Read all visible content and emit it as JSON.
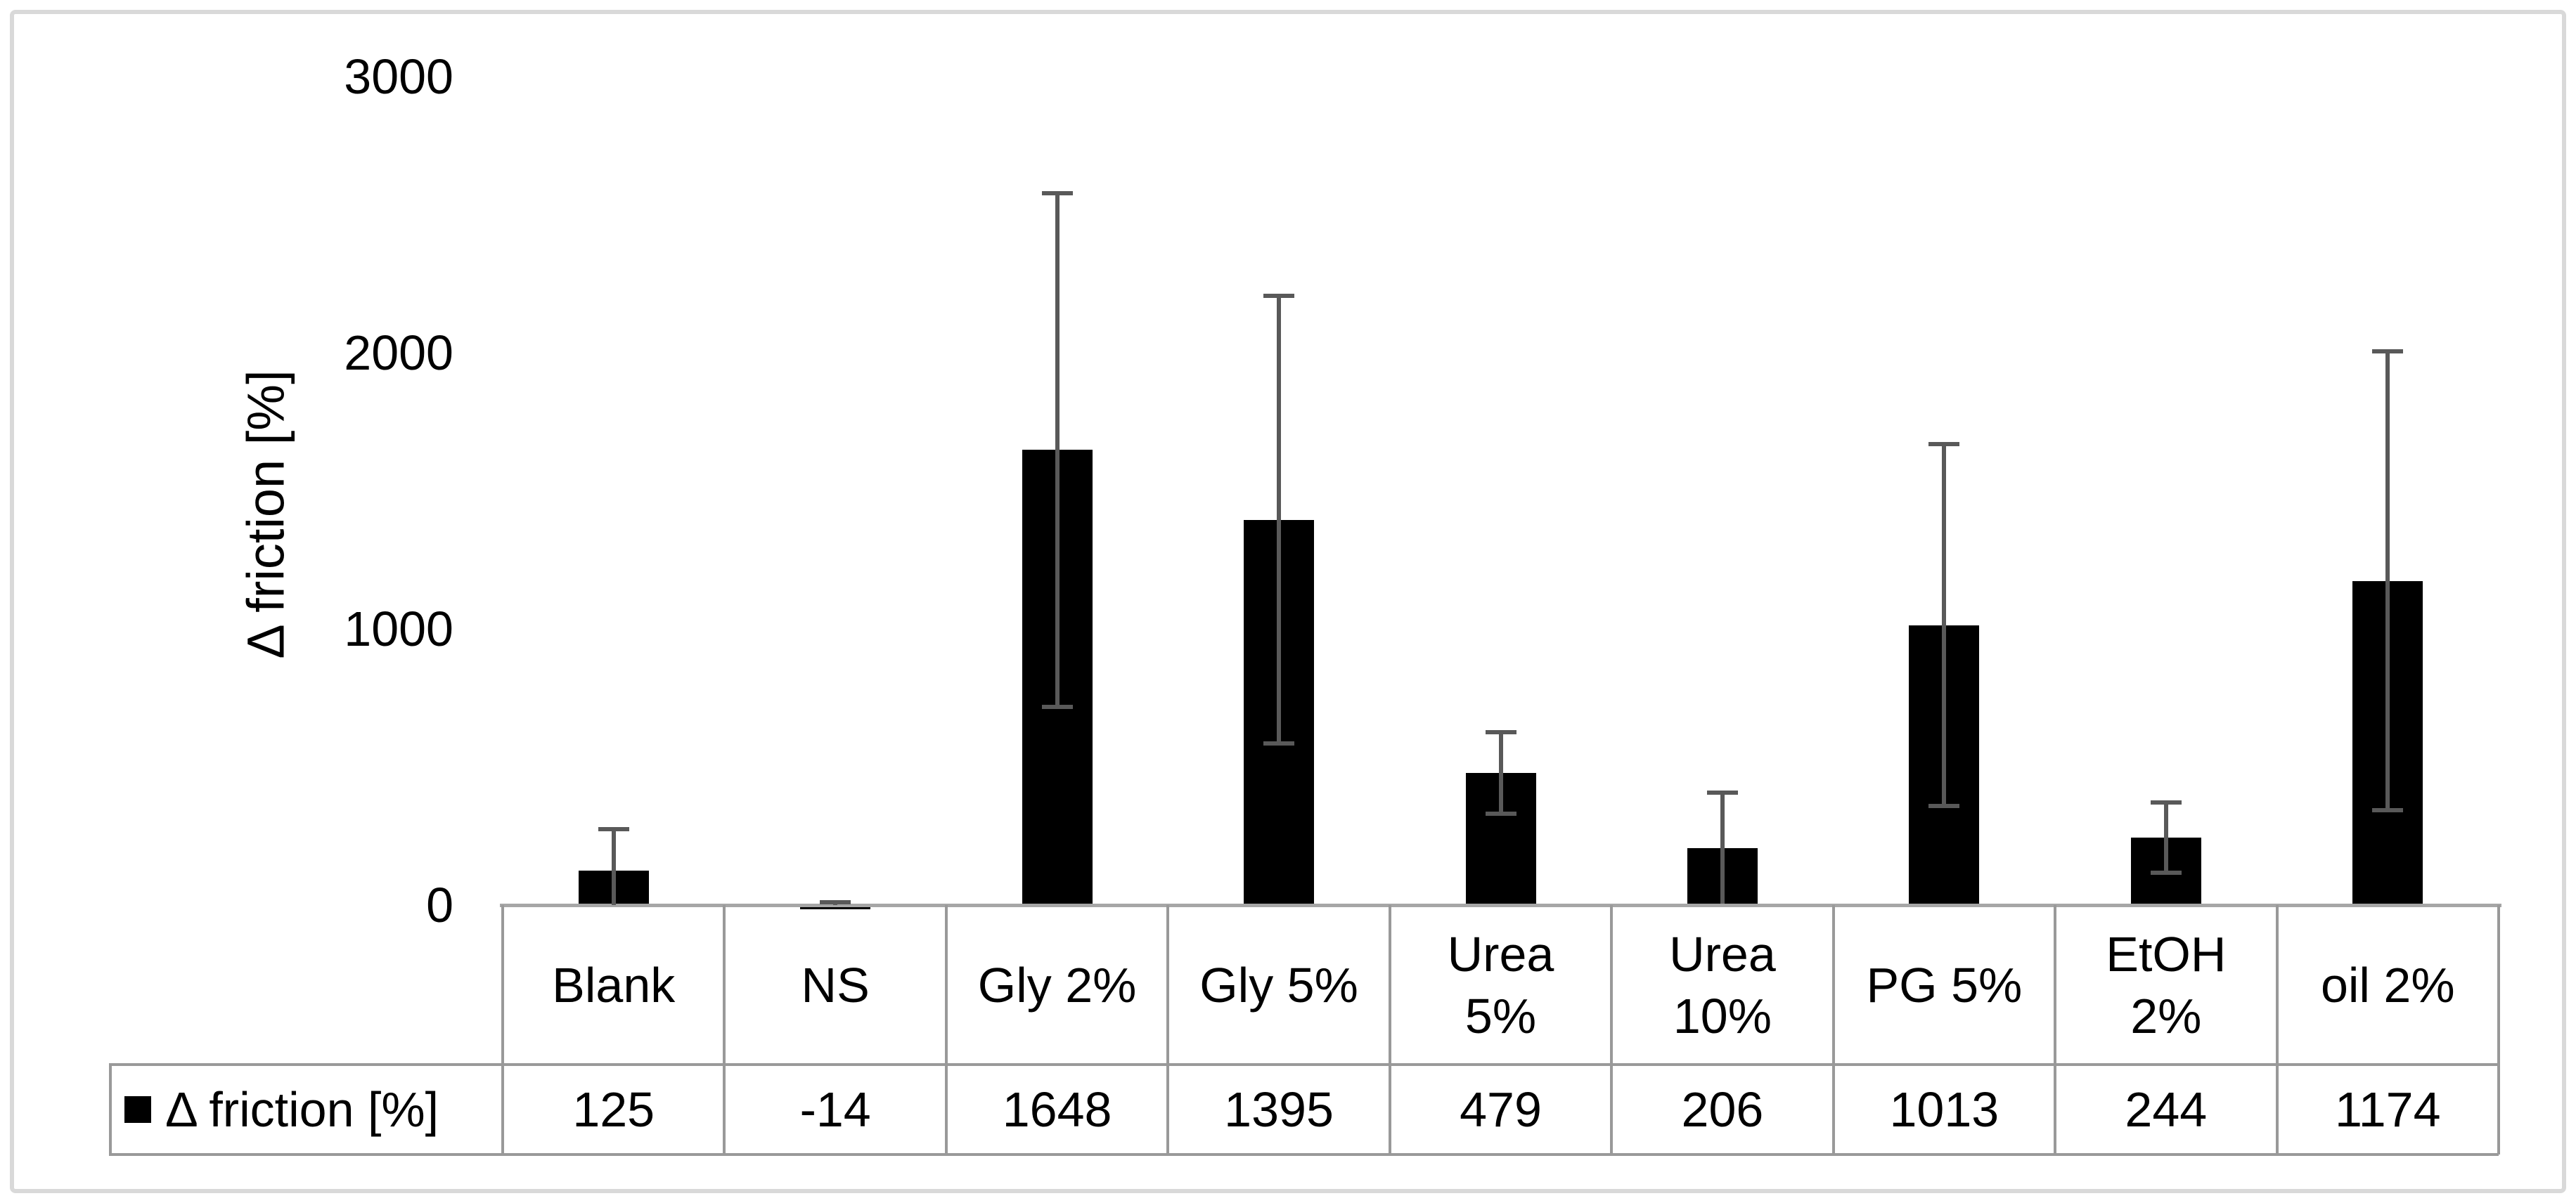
{
  "chart_data": {
    "type": "bar",
    "title": "",
    "xlabel": "",
    "ylabel": "Δ friction [%]",
    "y_ticks": [
      0,
      1000,
      2000,
      3000
    ],
    "ylim": [
      0,
      3000
    ],
    "grid": false,
    "legend_position": "table-left",
    "categories": [
      "Blank",
      "NS",
      "Gly 2%",
      "Gly 5%",
      "Urea 5%",
      "Urea 10%",
      "PG 5%",
      "EtOH 2%",
      "oil 2%"
    ],
    "category_display_lines": [
      [
        "Blank"
      ],
      [
        "NS"
      ],
      [
        "Gly 2%"
      ],
      [
        "Gly 5%"
      ],
      [
        "Urea",
        "5%"
      ],
      [
        "Urea",
        "10%"
      ],
      [
        "PG 5%"
      ],
      [
        "EtOH",
        "2%"
      ],
      [
        "oil 2%"
      ]
    ],
    "series": [
      {
        "name": "Δ friction [%]",
        "values": [
          125,
          -14,
          1648,
          1395,
          479,
          206,
          1013,
          244,
          1174
        ],
        "error_bars": [
          150,
          25,
          930,
          810,
          148,
          200,
          655,
          128,
          830
        ]
      }
    ],
    "data_table": {
      "legend_label": "Δ friction [%]",
      "row_values_text": [
        "125",
        "-14",
        "1648",
        "1395",
        "479",
        "206",
        "1013",
        "244",
        "1174"
      ]
    },
    "colors": {
      "bar": "#000000",
      "error_bar": "#595959",
      "axis_line": "#a6a6a6",
      "table_border": "#999999",
      "chart_frame": "#d9d9d9",
      "text": "#000000"
    }
  }
}
